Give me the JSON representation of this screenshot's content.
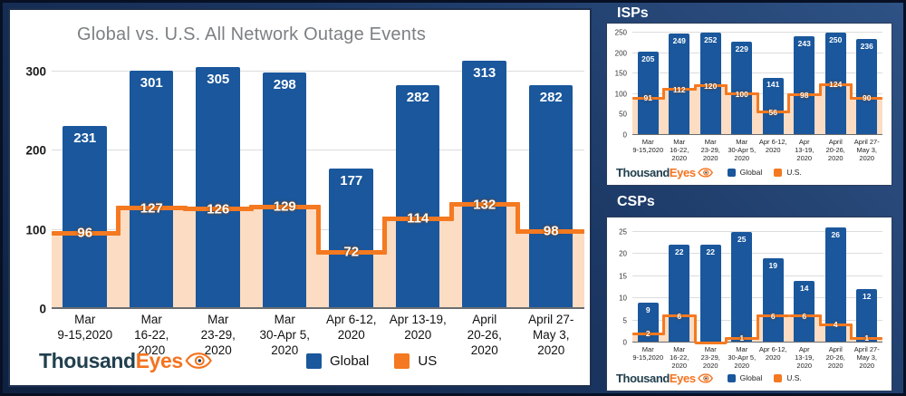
{
  "colors": {
    "bar_blue": "#1a579c",
    "line_orange": "#f47920",
    "area_peach": "#fcdcc2",
    "title_gray": "#7d8083",
    "logo_navy": "#22404e",
    "logo_orange": "#f4731f",
    "background_top": "#2e5285",
    "background_bottom": "#0f2140",
    "card_white": "#ffffff"
  },
  "logo": {
    "thousand": "Thousand",
    "eyes": "Eyes"
  },
  "chart_data": [
    {
      "type": "bar+step-area",
      "title": "Global vs. U.S. All Network Outage Events",
      "categories": [
        "Mar\n9-15,2020",
        "Mar\n16-22,\n2020",
        "Mar\n23-29,\n2020",
        "Mar\n30-Apr 5,\n2020",
        "Apr 6-12,\n2020",
        "Apr 13-19,\n2020",
        "April\n20-26,\n2020",
        "April 27-\nMay 3,\n2020"
      ],
      "series": [
        {
          "name": "Global",
          "type": "bar",
          "color": "#1a579c",
          "values": [
            231,
            301,
            305,
            298,
            177,
            282,
            313,
            282
          ],
          "value_labels": [
            "231",
            "301",
            "305",
            "298",
            "177",
            "282",
            "313",
            "282"
          ]
        },
        {
          "name": "US",
          "type": "step-area",
          "line_color": "#f47920",
          "fill_color": "#fcdcc2",
          "values": [
            96,
            127,
            126,
            129,
            72,
            114,
            132,
            98
          ],
          "value_labels": [
            "96",
            "127",
            "126",
            "129",
            "72",
            "114",
            "132",
            "98"
          ]
        }
      ],
      "yticks": [
        0,
        100,
        200,
        300
      ],
      "ymax": 320,
      "grid": true,
      "legend_position": "bottom"
    },
    {
      "type": "bar+step-area",
      "title": "ISPs",
      "categories": [
        "Mar\n9-15,2020",
        "Mar\n16-22,\n2020",
        "Mar\n23-29,\n2020",
        "Mar\n30-Apr 5,\n2020",
        "Apr 6-12,\n2020",
        "Apr\n13-19,\n2020",
        "April\n20-26,\n2020",
        "April 27-\nMay 3,\n2020"
      ],
      "series": [
        {
          "name": "Global",
          "type": "bar",
          "color": "#1a579c",
          "values": [
            205,
            249,
            252,
            229,
            141,
            243,
            250,
            236
          ],
          "value_labels": [
            "205",
            "249",
            "252",
            "229",
            "141",
            "243",
            "250",
            "236"
          ]
        },
        {
          "name": "U.S.",
          "type": "step-area",
          "line_color": "#f47920",
          "fill_color": "#fcdcc2",
          "values": [
            91,
            112,
            120,
            100,
            56,
            98,
            124,
            90
          ],
          "value_labels": [
            "91",
            "112",
            "120",
            "100",
            "56",
            "98",
            "124",
            "90"
          ]
        }
      ],
      "yticks": [
        0,
        50,
        100,
        150,
        200,
        250
      ],
      "ymax": 262,
      "grid": true,
      "legend_position": "bottom"
    },
    {
      "type": "bar+step-area",
      "title": "CSPs",
      "categories": [
        "Mar\n9-15,2020",
        "Mar\n16-22,\n2020",
        "Mar\n23-29,\n2020",
        "Mar\n30-Apr 5,\n2020",
        "Apr 6-12,\n2020",
        "Apr\n13-19,\n2020",
        "April\n20-26,\n2020",
        "April 27-\nMay 3,\n2020"
      ],
      "series": [
        {
          "name": "Global",
          "type": "bar",
          "color": "#1a579c",
          "values": [
            9,
            22,
            22,
            25,
            19,
            14,
            26,
            12
          ],
          "value_labels": [
            "9",
            "22",
            "22",
            "25",
            "19",
            "14",
            "26",
            "12"
          ]
        },
        {
          "name": "U.S.",
          "type": "step-area",
          "line_color": "#f47920",
          "fill_color": "#fcdcc2",
          "values": [
            2,
            6,
            0,
            1,
            6,
            6,
            4,
            1
          ],
          "value_labels": [
            "2",
            "6",
            "",
            "1",
            "6",
            "6",
            "4",
            "1"
          ]
        }
      ],
      "yticks": [
        0,
        5,
        10,
        15,
        20,
        25
      ],
      "ymax": 27,
      "grid": true,
      "legend_position": "bottom"
    }
  ]
}
